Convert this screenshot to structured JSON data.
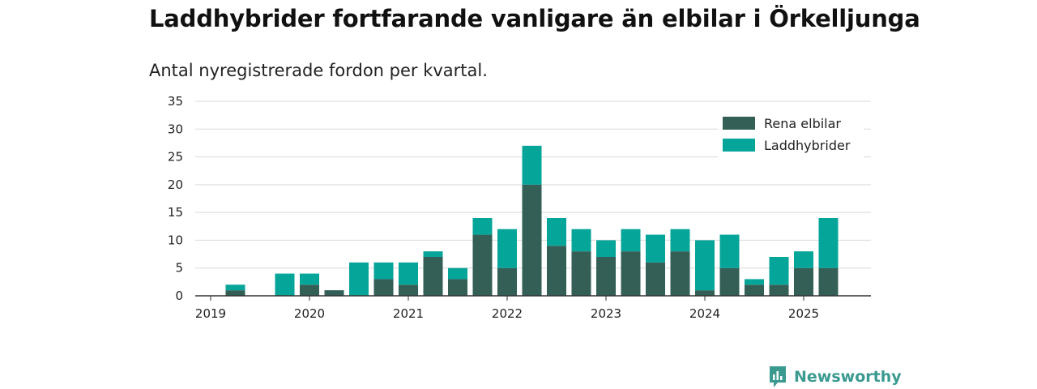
{
  "chart_data": {
    "type": "bar",
    "stacked": true,
    "title": "Laddhybrider fortfarande vanligare än elbilar i Örkelljunga",
    "subtitle": "Antal nyregistrerade fordon per kvartal.",
    "x_tick_labels": [
      "2019",
      "2020",
      "2021",
      "2022",
      "2023",
      "2024",
      "2025"
    ],
    "y_ticks": [
      0,
      5,
      10,
      15,
      20,
      25,
      30,
      35
    ],
    "ylim": [
      0,
      35
    ],
    "grid": true,
    "legend_position": "top-right",
    "categories": [
      "2019 Q1",
      "2019 Q2",
      "2019 Q3",
      "2019 Q4",
      "2020 Q1",
      "2020 Q2",
      "2020 Q3",
      "2020 Q4",
      "2021 Q1",
      "2021 Q2",
      "2021 Q3",
      "2021 Q4",
      "2022 Q1",
      "2022 Q2",
      "2022 Q3",
      "2022 Q4",
      "2023 Q1",
      "2023 Q2",
      "2023 Q3",
      "2023 Q4",
      "2024 Q1",
      "2024 Q2",
      "2024 Q3",
      "2024 Q4",
      "2025 Q1",
      "2025 Q2"
    ],
    "series": [
      {
        "name": "Rena elbilar",
        "color": "#335f57",
        "values": [
          0,
          1,
          0,
          0,
          2,
          1,
          0,
          3,
          2,
          7,
          3,
          11,
          5,
          20,
          9,
          8,
          7,
          8,
          6,
          8,
          1,
          5,
          2,
          2,
          5,
          5
        ]
      },
      {
        "name": "Laddhybrider",
        "color": "#06a59a",
        "values": [
          0,
          1,
          0,
          4,
          2,
          0,
          6,
          3,
          4,
          1,
          2,
          3,
          7,
          7,
          5,
          4,
          3,
          4,
          5,
          4,
          9,
          6,
          1,
          5,
          3,
          9
        ]
      }
    ]
  },
  "brand": {
    "name": "Newsworthy",
    "icon": "newsworthy-logo-icon",
    "color": "#3a9a90"
  }
}
